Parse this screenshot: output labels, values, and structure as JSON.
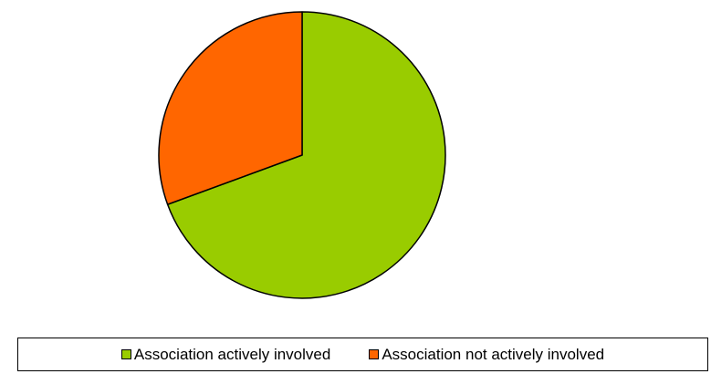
{
  "chart_data": {
    "type": "pie",
    "categories": [
      "Association actively involved",
      "Association not actively involved"
    ],
    "values": [
      69.4,
      30.6
    ],
    "colors": [
      "#99cc00",
      "#ff6600"
    ],
    "start_angle": "12 o'clock",
    "direction": "clockwise",
    "legend": "bottom"
  }
}
